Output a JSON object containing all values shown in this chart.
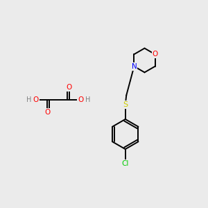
{
  "bg_color": "#ebebeb",
  "bond_color": "#000000",
  "atom_colors": {
    "O": "#ff0000",
    "N": "#0000ff",
    "S": "#cccc00",
    "Cl": "#00cc00",
    "C": "#000000",
    "H": "#808080"
  }
}
